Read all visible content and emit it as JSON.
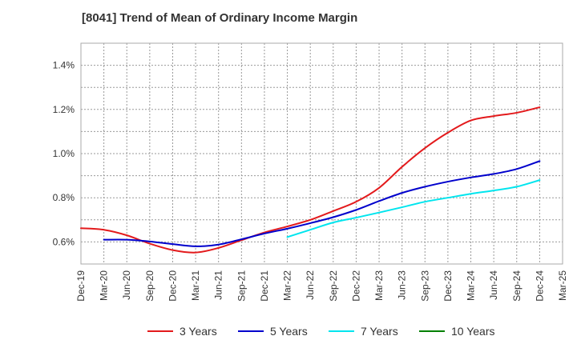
{
  "chart_data": {
    "type": "line",
    "title": "[8041]  Trend of Mean of Ordinary Income Margin",
    "xlabel": "",
    "ylabel": "",
    "x": [
      "Dec-19",
      "Mar-20",
      "Jun-20",
      "Sep-20",
      "Dec-20",
      "Mar-21",
      "Jun-21",
      "Sep-21",
      "Dec-21",
      "Mar-22",
      "Jun-22",
      "Sep-22",
      "Dec-22",
      "Mar-23",
      "Jun-23",
      "Sep-23",
      "Dec-23",
      "Mar-24",
      "Jun-24",
      "Sep-24",
      "Dec-24",
      "Mar-25"
    ],
    "yticks": [
      "0.6%",
      "0.8%",
      "1.0%",
      "1.2%",
      "1.4%"
    ],
    "ylim": [
      0.5,
      1.5
    ],
    "grid": true,
    "legend_position": "bottom",
    "series": [
      {
        "name": "3 Years",
        "color": "#e31a1c",
        "values": [
          0.662,
          0.655,
          0.63,
          0.592,
          0.563,
          0.552,
          0.573,
          0.608,
          0.643,
          0.67,
          0.7,
          0.74,
          0.782,
          0.845,
          0.94,
          1.025,
          1.095,
          1.15,
          1.17,
          1.185,
          1.21,
          null
        ]
      },
      {
        "name": "5 Years",
        "color": "#0000cc",
        "values": [
          null,
          0.61,
          0.61,
          0.602,
          0.59,
          0.58,
          0.588,
          0.612,
          0.638,
          0.66,
          0.685,
          0.712,
          0.745,
          0.785,
          0.822,
          0.85,
          0.873,
          0.892,
          0.908,
          0.93,
          0.966,
          null
        ]
      },
      {
        "name": "7 Years",
        "color": "#00e5ee",
        "values": [
          null,
          null,
          null,
          null,
          null,
          null,
          null,
          null,
          null,
          0.622,
          0.655,
          0.688,
          0.71,
          0.733,
          0.757,
          0.782,
          0.8,
          0.818,
          0.833,
          0.85,
          0.88,
          null
        ]
      },
      {
        "name": "10 Years",
        "color": "#008000",
        "values": [
          null,
          null,
          null,
          null,
          null,
          null,
          null,
          null,
          null,
          null,
          null,
          null,
          null,
          null,
          null,
          null,
          null,
          null,
          null,
          null,
          null,
          null
        ]
      }
    ]
  }
}
